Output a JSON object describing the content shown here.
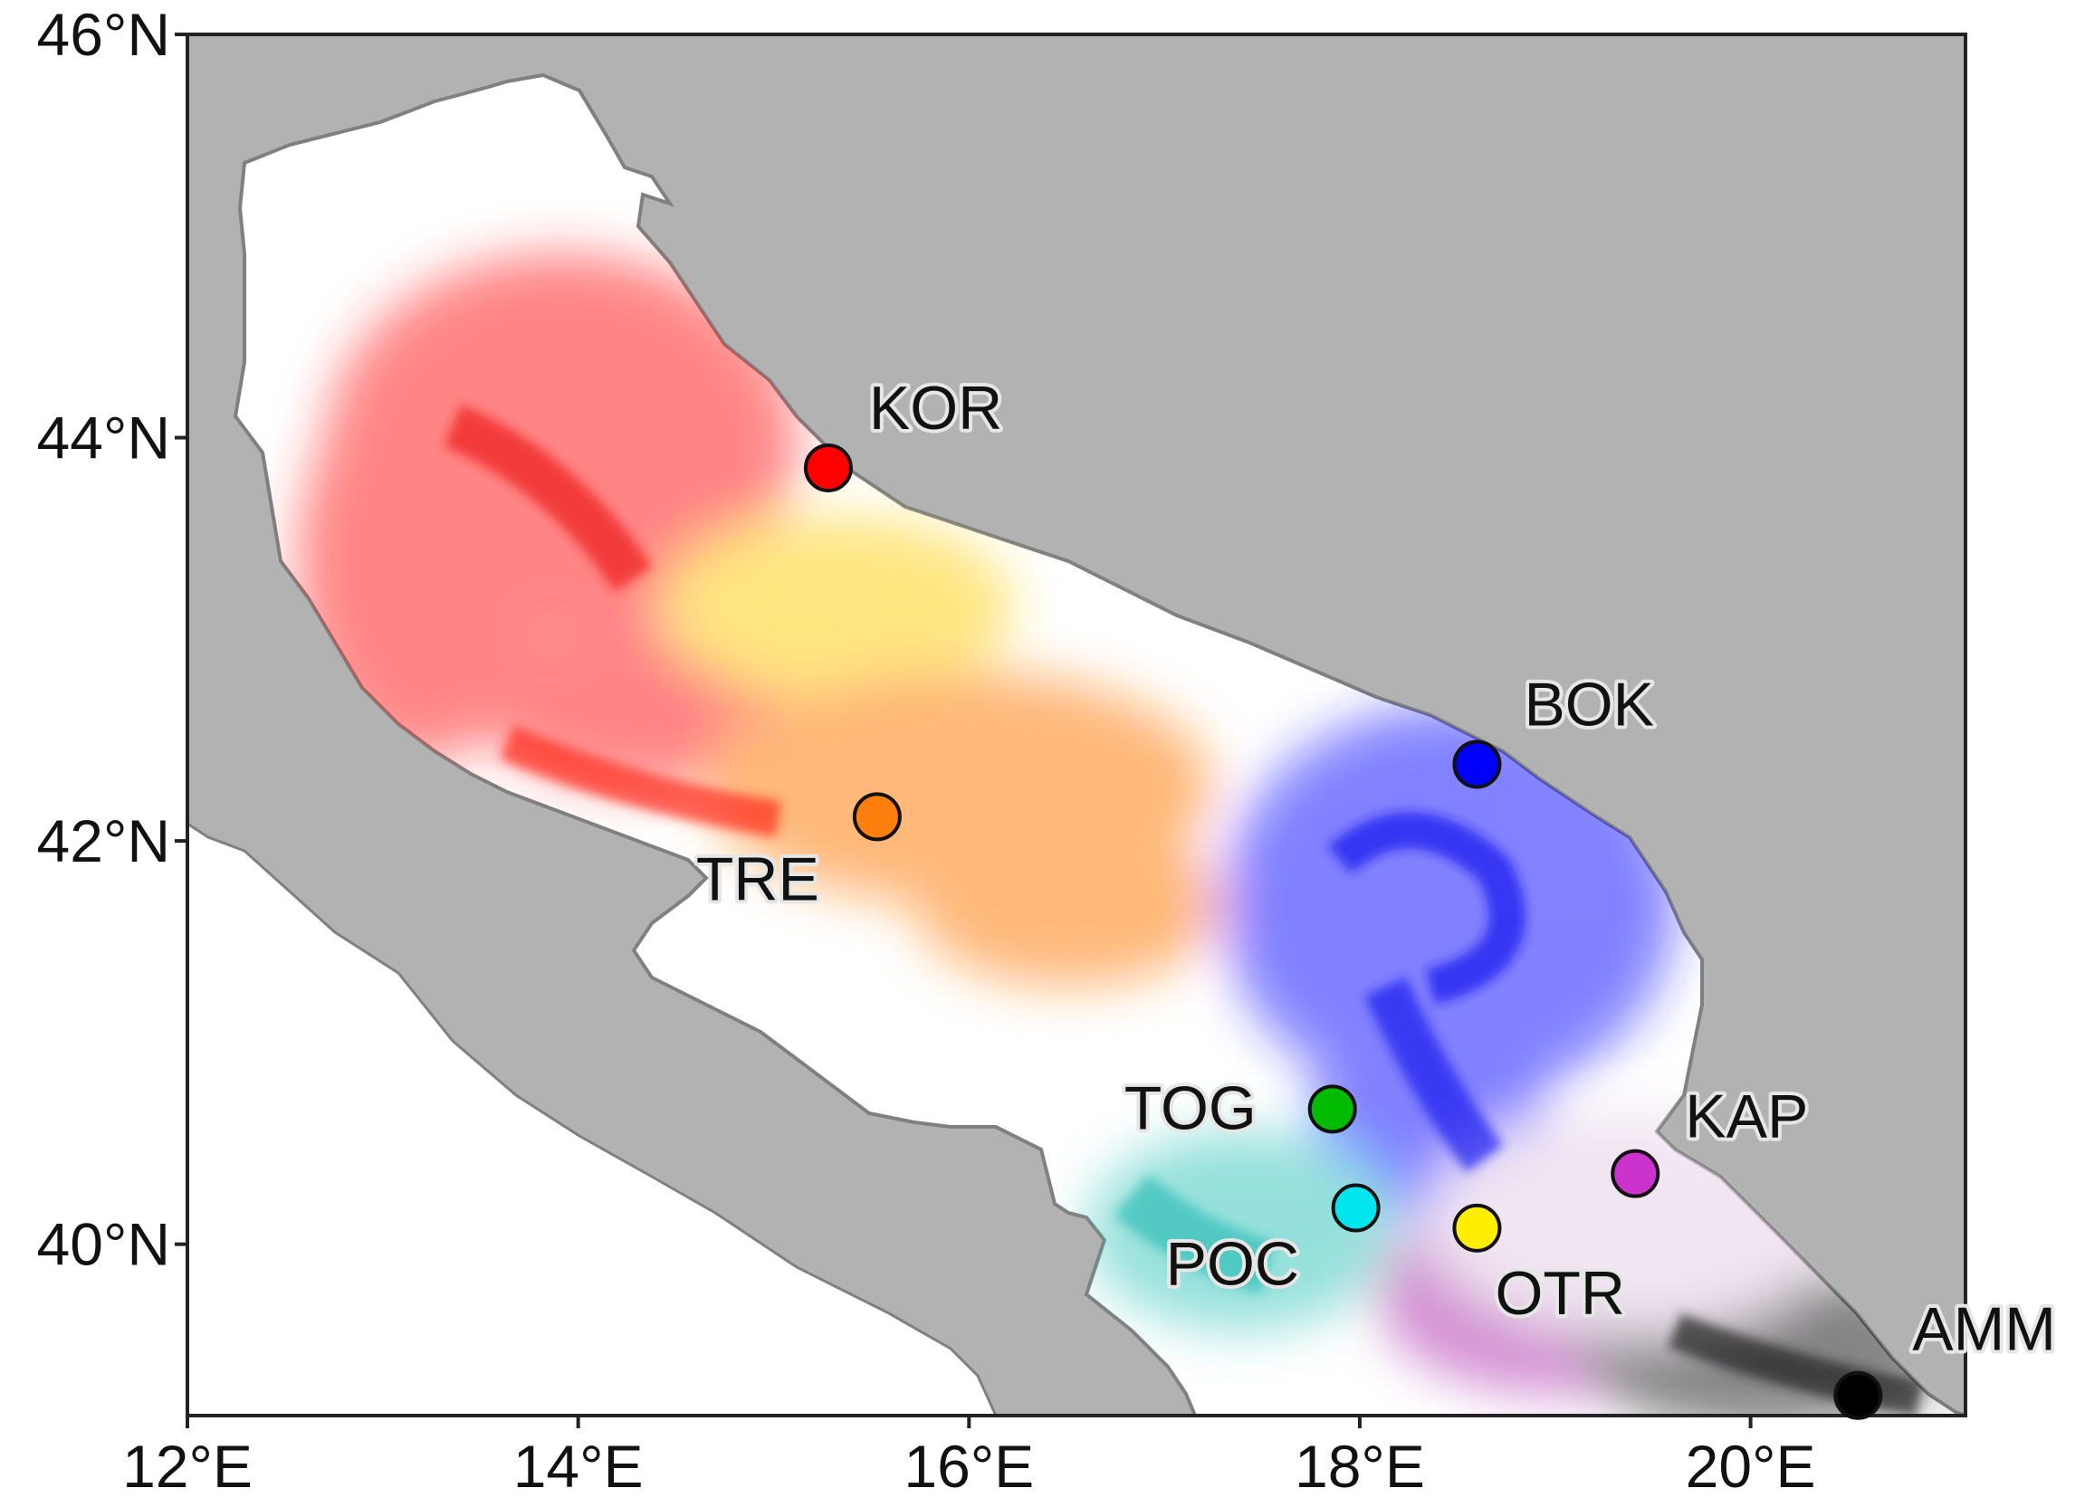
{
  "map": {
    "extent": {
      "lon": [
        12,
        21.1
      ],
      "lat": [
        39.15,
        46
      ]
    },
    "colors": {
      "land": "#b2b2b2",
      "sea": "#ffffff",
      "coastline": "#808080",
      "frame": "#222222"
    },
    "x_ticks": [
      {
        "value": 12,
        "label": "12°E"
      },
      {
        "value": 14,
        "label": "14°E"
      },
      {
        "value": 16,
        "label": "16°E"
      },
      {
        "value": 18,
        "label": "18°E"
      },
      {
        "value": 20,
        "label": "20°E"
      }
    ],
    "y_ticks": [
      {
        "value": 46,
        "label": "46°N"
      },
      {
        "value": 44,
        "label": "44°N"
      },
      {
        "value": 42,
        "label": "42°N"
      },
      {
        "value": 40,
        "label": "40°N"
      }
    ],
    "stations": [
      {
        "id": "KOR",
        "label": "KOR",
        "lon": 15.28,
        "lat": 43.85,
        "color": "#ff0000"
      },
      {
        "id": "TRE",
        "label": "TRE",
        "lon": 15.53,
        "lat": 42.12,
        "color": "#ff7f0e"
      },
      {
        "id": "BOK",
        "label": "BOK",
        "lon": 18.6,
        "lat": 42.38,
        "color": "#0000ff"
      },
      {
        "id": "TOG",
        "label": "TOG",
        "lon": 17.86,
        "lat": 40.67,
        "color": "#00bb00"
      },
      {
        "id": "KAP",
        "label": "KAP",
        "lon": 19.41,
        "lat": 40.35,
        "color": "#cc33cc"
      },
      {
        "id": "POC",
        "label": "POC",
        "lon": 17.98,
        "lat": 40.18,
        "color": "#00e5ee"
      },
      {
        "id": "OTR",
        "label": "OTR",
        "lon": 18.6,
        "lat": 40.08,
        "color": "#ffee00"
      },
      {
        "id": "AMM",
        "label": "AMM",
        "lon": 20.55,
        "lat": 39.25,
        "color": "#000000"
      }
    ],
    "particle_clouds": [
      {
        "station": "KOR",
        "color": "#ff2020"
      },
      {
        "station": "TRE",
        "color": "#ff7f0e"
      },
      {
        "station": "BOK",
        "color": "#1a1aff"
      },
      {
        "station": "POC",
        "color": "#40c8c0"
      },
      {
        "station": "OTR",
        "color": "#ffd21a"
      },
      {
        "station": "KAP",
        "color": "#b030b0"
      },
      {
        "station": "AMM",
        "color": "#222222"
      }
    ]
  }
}
